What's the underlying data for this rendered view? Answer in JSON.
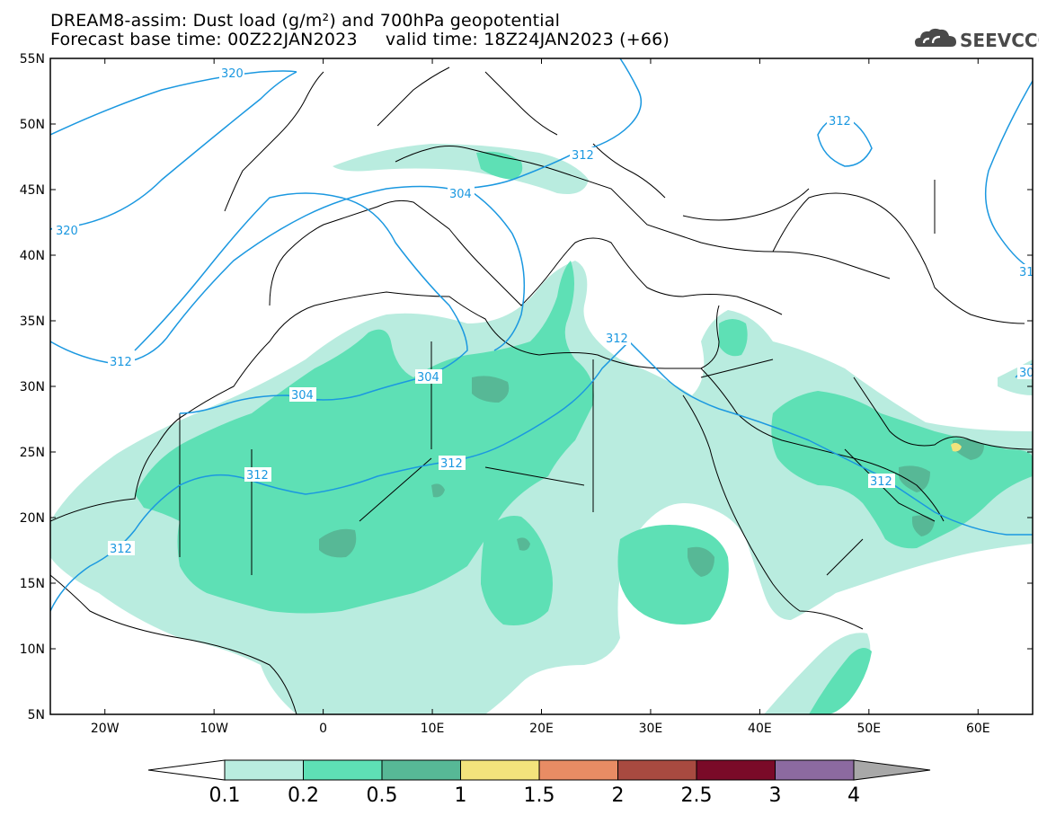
{
  "title": {
    "line1": "DREAM8-assim: Dust load (g/m²) and 700hPa geopotential",
    "line2": "Forecast base time: 00Z22JAN2023     valid time: 18Z24JAN2023 (+66)"
  },
  "logo": {
    "text": "SEEVCCC",
    "icon": "cloud-icon"
  },
  "map": {
    "lon_range": [
      -25,
      65
    ],
    "lat_range": [
      5,
      55
    ],
    "lat_ticks": [
      "55N",
      "50N",
      "45N",
      "40N",
      "35N",
      "30N",
      "25N",
      "20N",
      "15N",
      "10N",
      "5N"
    ],
    "lon_ticks": [
      "20W",
      "10W",
      "0",
      "10E",
      "20E",
      "30E",
      "40E",
      "50E",
      "60E"
    ],
    "contour_labels": [
      "320",
      "320",
      "312",
      "312",
      "312",
      "312",
      "312",
      "312",
      "312",
      "304",
      "304",
      "304",
      "304",
      "312",
      "31",
      "30"
    ]
  },
  "colorbar": {
    "labels": [
      "0.1",
      "0.2",
      "0.5",
      "1",
      "1.5",
      "2",
      "2.5",
      "3",
      "4"
    ],
    "colors": [
      "#ffffff",
      "#b9ecdf",
      "#5ee0b5",
      "#57b896",
      "#f3e37c",
      "#e88c64",
      "#a84a40",
      "#7a0a28",
      "#8c6aa0",
      "#a8a8a8"
    ]
  },
  "colors": {
    "dust_01": "#b9ecdf",
    "dust_02": "#5ee0b5",
    "dust_05": "#57b896",
    "dust_1": "#f3e37c",
    "contour": "#1b98e0"
  }
}
